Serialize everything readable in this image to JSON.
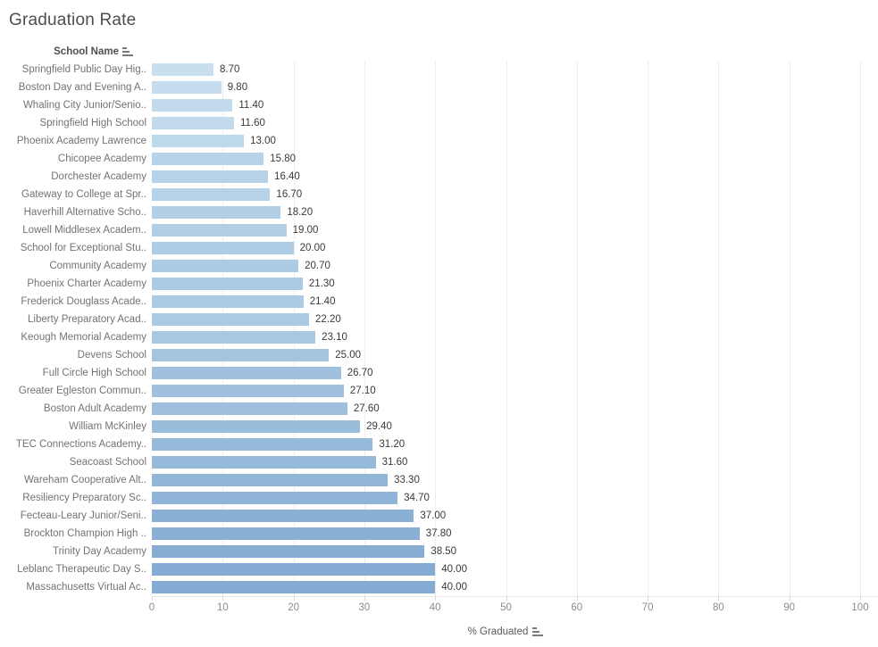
{
  "title": "Graduation Rate",
  "row_header": {
    "label": "School Name",
    "sort_icon": "sort-ascending-icon"
  },
  "axis": {
    "label": "% Graduated",
    "sort_icon": "sort-ascending-icon",
    "ticks": [
      0,
      10,
      20,
      30,
      40,
      50,
      60,
      70,
      80,
      90,
      100
    ],
    "min": 0,
    "max": 100
  },
  "colors": {
    "bar_scale": {
      "from": "#c7dfef",
      "to": "#84abd2",
      "domain": [
        8.7,
        40.0
      ]
    },
    "gridline": "#ededed",
    "title_text": "#4d4d4d",
    "label_text": "#737373",
    "value_text": "#3a3a3a",
    "tick_text": "#8c8c8c"
  },
  "chart_data": {
    "type": "bar",
    "orientation": "horizontal",
    "title": "Graduation Rate",
    "xlabel": "% Graduated",
    "ylabel": "School Name",
    "xlim": [
      0,
      100
    ],
    "grid": true,
    "legend": "none",
    "sort": "ascending by value",
    "categories": [
      "Springfield Public Day Hig..",
      "Boston Day and Evening A..",
      "Whaling City Junior/Senio..",
      "Springfield High School",
      "Phoenix Academy Lawrence",
      "Chicopee Academy",
      "Dorchester Academy",
      "Gateway to College at Spr..",
      "Haverhill Alternative Scho..",
      "Lowell Middlesex Academ..",
      "School for Exceptional Stu..",
      "Community Academy",
      "Phoenix Charter Academy",
      "Frederick Douglass Acade..",
      "Liberty Preparatory Acad..",
      "Keough Memorial Academy",
      "Devens School",
      "Full Circle High School",
      "Greater Egleston Commun..",
      "Boston Adult Academy",
      "William McKinley",
      "TEC Connections Academy..",
      "Seacoast School",
      "Wareham Cooperative Alt..",
      "Resiliency Preparatory Sc..",
      "Fecteau-Leary Junior/Seni..",
      "Brockton Champion High ..",
      "Trinity Day Academy",
      "Leblanc Therapeutic Day S..",
      "Massachusetts Virtual Ac.."
    ],
    "values": [
      8.7,
      9.8,
      11.4,
      11.6,
      13.0,
      15.8,
      16.4,
      16.7,
      18.2,
      19.0,
      20.0,
      20.7,
      21.3,
      21.4,
      22.2,
      23.1,
      25.0,
      26.7,
      27.1,
      27.6,
      29.4,
      31.2,
      31.6,
      33.3,
      34.7,
      37.0,
      37.8,
      38.5,
      40.0,
      40.0
    ],
    "value_labels": [
      "8.70",
      "9.80",
      "11.40",
      "11.60",
      "13.00",
      "15.80",
      "16.40",
      "16.70",
      "18.20",
      "19.00",
      "20.00",
      "20.70",
      "21.30",
      "21.40",
      "22.20",
      "23.10",
      "25.00",
      "26.70",
      "27.10",
      "27.60",
      "29.40",
      "31.20",
      "31.60",
      "33.30",
      "34.70",
      "37.00",
      "37.80",
      "38.50",
      "40.00",
      "40.00"
    ]
  }
}
